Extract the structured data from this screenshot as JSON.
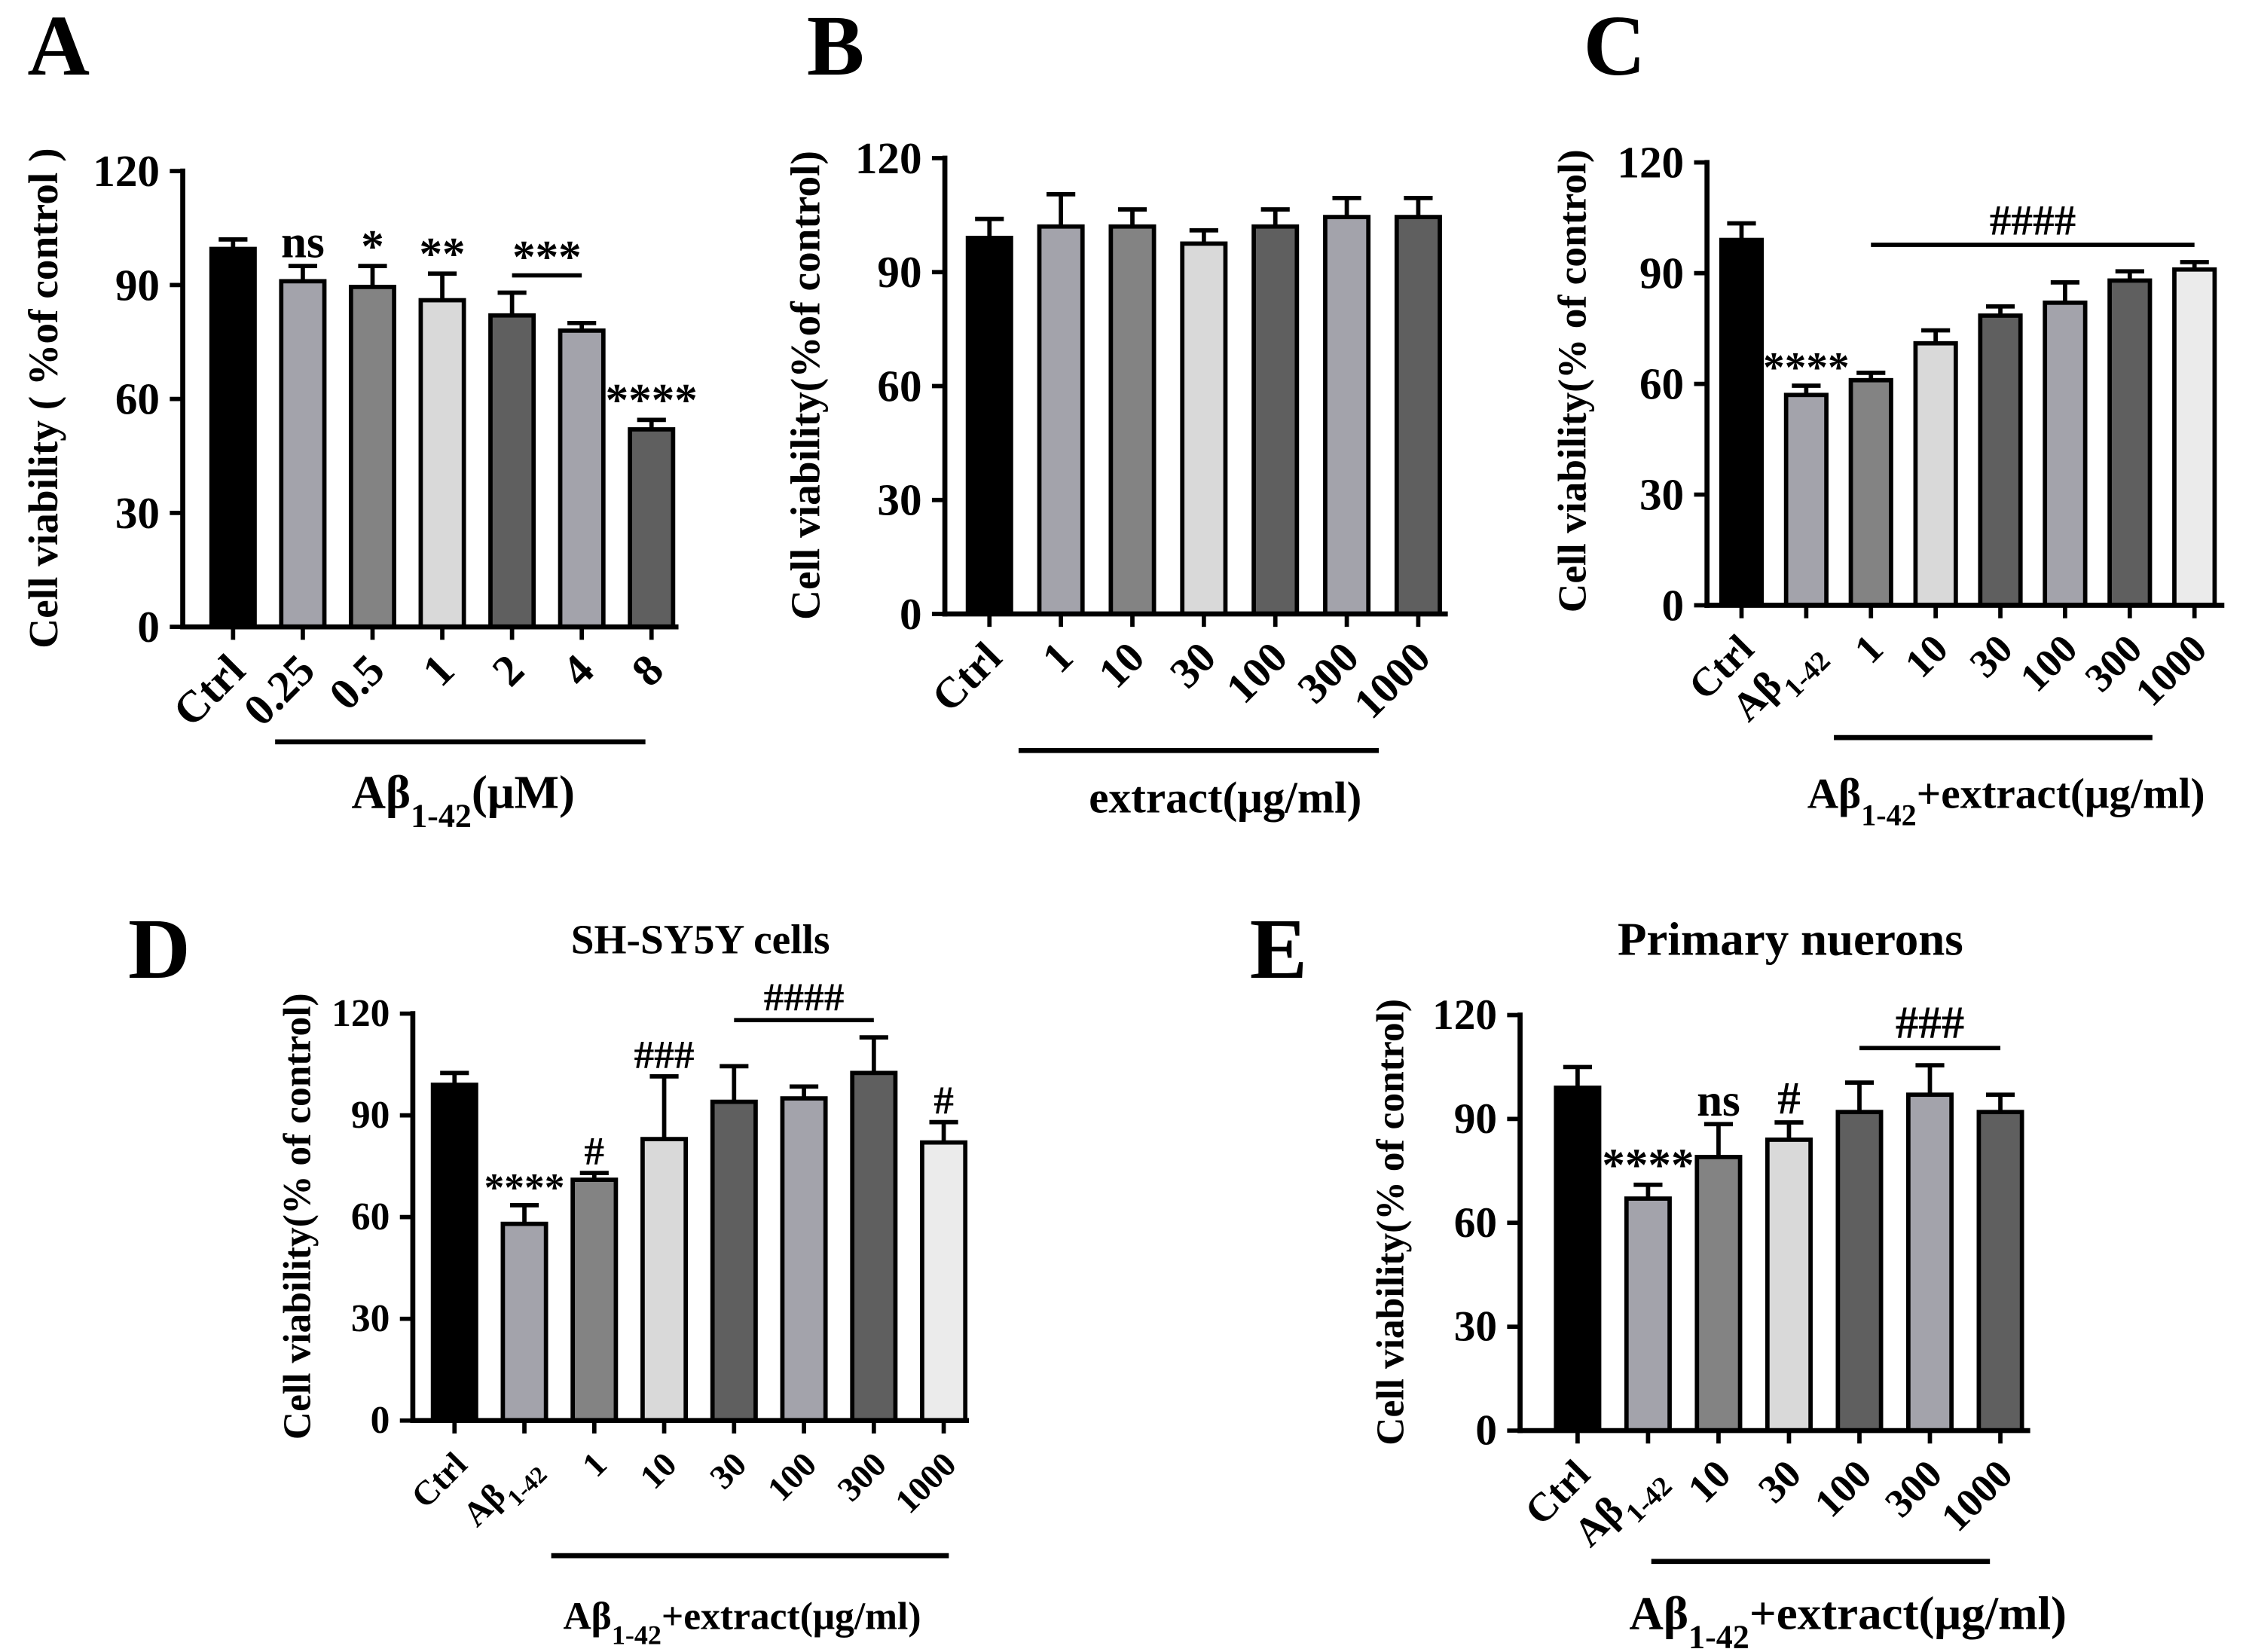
{
  "chart_data": [
    {
      "panel": "A",
      "type": "bar",
      "title": "",
      "ylabel": "Cell viability ( %of control )",
      "xlabel": "Aβ1-42(μM)",
      "categories": [
        "Ctrl",
        "0.25",
        "0.5",
        "1",
        "2",
        "4",
        "8"
      ],
      "values": [
        99.5,
        91,
        89.5,
        86,
        82,
        78,
        52
      ],
      "errors": [
        2.5,
        4,
        5.5,
        7,
        6,
        2,
        2.5
      ],
      "colors": [
        "#000000",
        "#a3a3ab",
        "#838383",
        "#d9d9d9",
        "#5f5f5f",
        "#a3a3ab",
        "#5f5f5f"
      ],
      "ylim": [
        0,
        120
      ],
      "yticks": [
        0,
        30,
        60,
        90,
        120
      ],
      "annotations": [
        {
          "text": "ns",
          "from": 1,
          "to": 1
        },
        {
          "text": "*",
          "from": 2,
          "to": 2
        },
        {
          "text": "**",
          "from": 3,
          "to": 3
        },
        {
          "text": "***",
          "from": 4,
          "to": 5
        },
        {
          "text": "****",
          "from": 6,
          "to": 6
        }
      ]
    },
    {
      "panel": "B",
      "type": "bar",
      "title": "",
      "ylabel": "Cell viability(%of control)",
      "xlabel": "extract(μg/ml)",
      "categories": [
        "Ctrl",
        "1",
        "10",
        "30",
        "100",
        "300",
        "1000"
      ],
      "values": [
        99,
        102,
        102,
        97.5,
        102,
        104.5,
        104.5
      ],
      "errors": [
        5,
        8.5,
        4.5,
        3.5,
        4.5,
        5,
        5
      ],
      "colors": [
        "#000000",
        "#a3a3ab",
        "#838383",
        "#d9d9d9",
        "#5f5f5f",
        "#a3a3ab",
        "#5f5f5f"
      ],
      "ylim": [
        0,
        120
      ],
      "yticks": [
        0,
        30,
        60,
        90,
        120
      ],
      "annotations": []
    },
    {
      "panel": "C",
      "type": "bar",
      "title": "",
      "ylabel": "Cell viability(% of control)",
      "xlabel": "Aβ1-42+extract(μg/ml)",
      "categories": [
        "Ctrl",
        "Aβ1-42",
        "1",
        "10",
        "30",
        "100",
        "300",
        "1000"
      ],
      "values": [
        99,
        57,
        61,
        71,
        78.5,
        82,
        88,
        91
      ],
      "errors": [
        4.5,
        2.5,
        2,
        3.5,
        2.5,
        5.5,
        2.5,
        2
      ],
      "colors": [
        "#000000",
        "#a3a3ab",
        "#838383",
        "#d9d9d9",
        "#5f5f5f",
        "#a3a3ab",
        "#5f5f5f",
        "#ebebeb"
      ],
      "ylim": [
        0,
        120
      ],
      "yticks": [
        0,
        30,
        60,
        90,
        120
      ],
      "annotations": [
        {
          "text": "****",
          "from": 1,
          "to": 1
        },
        {
          "text": "####",
          "from": 2,
          "to": 7
        }
      ]
    },
    {
      "panel": "D",
      "type": "bar",
      "title": "SH-SY5Y cells",
      "ylabel": "Cell viability(% of control)",
      "xlabel": "Aβ1-42+extract(μg/ml)",
      "categories": [
        "Ctrl",
        "Aβ1-42",
        "1",
        "10",
        "30",
        "100",
        "300",
        "1000"
      ],
      "values": [
        99,
        58,
        71,
        83,
        94,
        95,
        102.5,
        82
      ],
      "errors": [
        3.5,
        5.5,
        2,
        18.5,
        10.5,
        3.5,
        10.5,
        6
      ],
      "colors": [
        "#000000",
        "#a3a3ab",
        "#838383",
        "#d9d9d9",
        "#5f5f5f",
        "#a3a3ab",
        "#5f5f5f",
        "#ebebeb"
      ],
      "ylim": [
        0,
        120
      ],
      "yticks": [
        0,
        30,
        60,
        90,
        120
      ],
      "annotations": [
        {
          "text": "****",
          "from": 1,
          "to": 1
        },
        {
          "text": "#",
          "from": 2,
          "to": 2
        },
        {
          "text": "###",
          "from": 3,
          "to": 3
        },
        {
          "text": "####",
          "from": 4,
          "to": 6
        },
        {
          "text": "#",
          "from": 7,
          "to": 7
        }
      ]
    },
    {
      "panel": "E",
      "type": "bar",
      "title": "Primary nuerons",
      "ylabel": "Cell viability(% of control)",
      "xlabel": "Aβ1-42+extract(μg/ml)",
      "categories": [
        "Ctrl",
        "Aβ1-42",
        "10",
        "30",
        "100",
        "300",
        "1000"
      ],
      "values": [
        99,
        67,
        79,
        84,
        92,
        97,
        92
      ],
      "errors": [
        6,
        4,
        9.5,
        5,
        8.5,
        8.5,
        5
      ],
      "colors": [
        "#000000",
        "#a3a3ab",
        "#838383",
        "#d9d9d9",
        "#5f5f5f",
        "#a3a3ab",
        "#5f5f5f"
      ],
      "ylim": [
        0,
        120
      ],
      "yticks": [
        0,
        30,
        60,
        90,
        120
      ],
      "annotations": [
        {
          "text": "****",
          "from": 1,
          "to": 1
        },
        {
          "text": "ns",
          "from": 2,
          "to": 2
        },
        {
          "text": "#",
          "from": 3,
          "to": 3
        },
        {
          "text": "###",
          "from": 4,
          "to": 6
        }
      ]
    }
  ]
}
